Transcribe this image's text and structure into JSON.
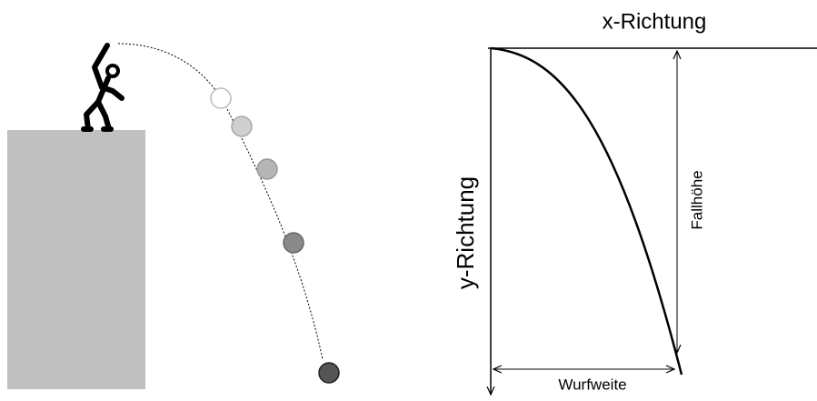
{
  "labels": {
    "x_axis": "x-Richtung",
    "y_axis": "y-Richtung",
    "fall_height": "Fallhöhe",
    "range": "Wurfweite"
  }
}
